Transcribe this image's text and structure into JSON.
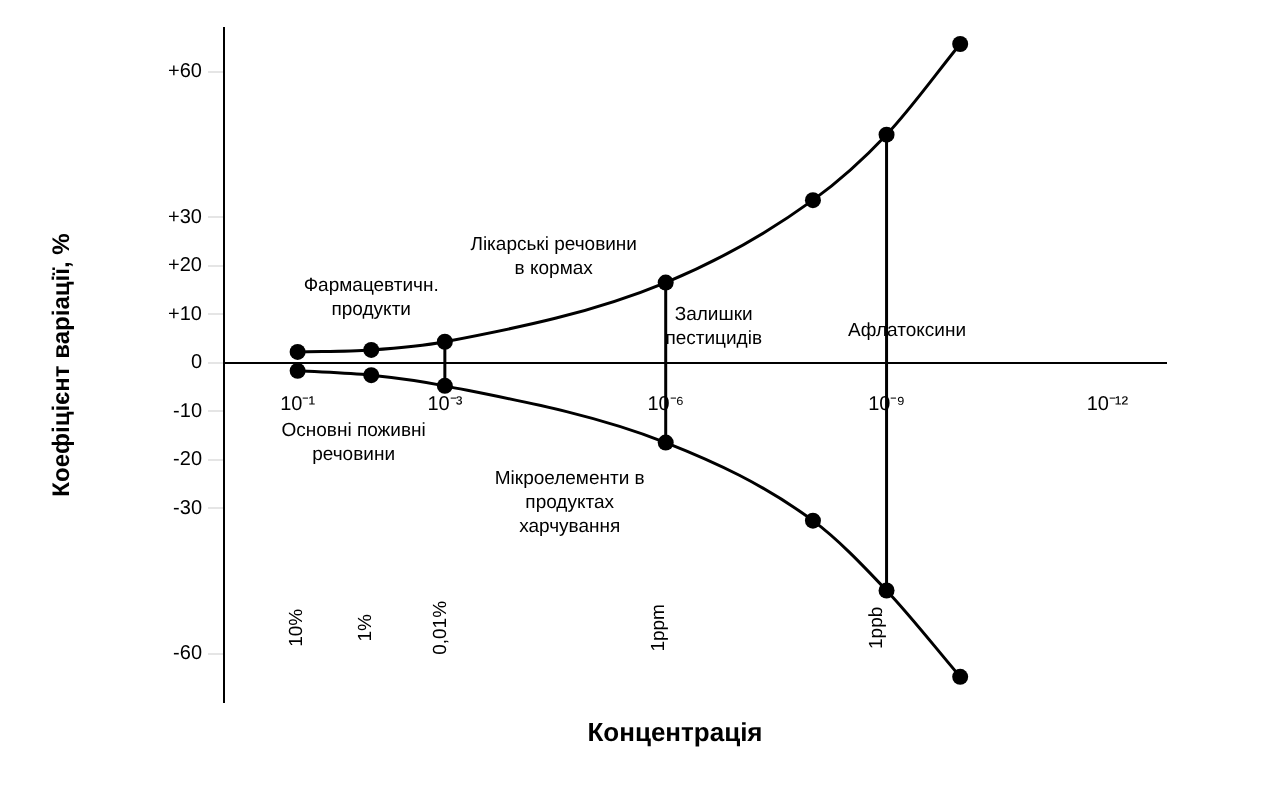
{
  "chart_data": {
    "type": "line",
    "xlabel": "Концентрація",
    "ylabel": "Коефіцієнт варіації, %",
    "series": [
      {
        "color": "#000000",
        "x": [
          0.1,
          0.01,
          0.001,
          1e-06,
          1e-08,
          1e-09,
          1e-10
        ],
        "values": [
          2.2,
          2.6,
          4.3,
          16.5,
          33.5,
          47,
          65.7
        ]
      },
      {
        "color": "#000000",
        "x": [
          0.1,
          0.01,
          0.001,
          1e-06,
          1e-08,
          1e-09,
          1e-10
        ],
        "values": [
          -1.7,
          -2.6,
          -4.8,
          -16.5,
          -32.6,
          -47,
          -64.8
        ]
      },
      {
        "color": "#000000",
        "marker": "none",
        "x": [
          0.001,
          0.001
        ],
        "values": [
          4.3,
          -4.8
        ]
      },
      {
        "color": "#000000",
        "marker": "none",
        "x": [
          1e-06,
          1e-06
        ],
        "values": [
          16.5,
          -16.5
        ]
      },
      {
        "color": "#000000",
        "marker": "none",
        "x": [
          1e-09,
          1e-09
        ],
        "values": [
          47,
          -47
        ]
      }
    ],
    "log": "x",
    "xlim": [
      1,
      1.6e-13
    ],
    "xticks": [
      {
        "value": 0.1,
        "label": "10⁻¹"
      },
      {
        "value": 0.001,
        "label": "10⁻³"
      },
      {
        "value": 1e-06,
        "label": "10⁻⁶"
      },
      {
        "value": 1e-09,
        "label": "10⁻⁹"
      },
      {
        "value": 1e-12,
        "label": "10⁻¹²"
      }
    ],
    "ylim": [
      -70,
      69
    ],
    "yticks": [
      {
        "value": 60,
        "label": "+60"
      },
      {
        "value": 30,
        "label": "+30"
      },
      {
        "value": 20,
        "label": "+20"
      },
      {
        "value": 10,
        "label": "+10"
      },
      0,
      -10,
      -20,
      -30,
      -60
    ],
    "annotations": [
      {
        "text": "Фармацевтичн.\nпродукти",
        "x": 0.01,
        "y": 2.6
      },
      "Лікарські речовини\nв кормах",
      {
        "text": "Залишки\nпестицидів",
        "x": 1e-06,
        "y": 16.5
      },
      "Афлатоксини",
      {
        "text": "Основні поживні\nречовини",
        "x": 0.1,
        "y": -1.7
      },
      {
        "text": "Мікроелементи в\nпродуктах\nхарчування",
        "x": 1e-06,
        "y": -16.5
      },
      "10%",
      "1%",
      "0,01%",
      "1ppm",
      "1ppb"
    ],
    "grid": false,
    "legend": false,
    "marker": "circle",
    "line_style": "solid"
  }
}
